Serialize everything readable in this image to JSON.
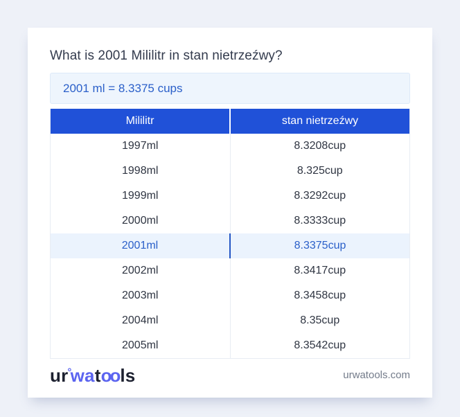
{
  "title": "What is 2001 Mililitr in stan nietrzeźwy?",
  "result": "2001 ml = 8.3375 cups",
  "table": {
    "columns": [
      "Mililitr",
      "stan nietrzeźwy"
    ],
    "rows": [
      {
        "ml": "1997ml",
        "cup": "8.3208cup",
        "highlighted": false
      },
      {
        "ml": "1998ml",
        "cup": "8.325cup",
        "highlighted": false
      },
      {
        "ml": "1999ml",
        "cup": "8.3292cup",
        "highlighted": false
      },
      {
        "ml": "2000ml",
        "cup": "8.3333cup",
        "highlighted": false
      },
      {
        "ml": "2001ml",
        "cup": "8.3375cup",
        "highlighted": true
      },
      {
        "ml": "2002ml",
        "cup": "8.3417cup",
        "highlighted": false
      },
      {
        "ml": "2003ml",
        "cup": "8.3458cup",
        "highlighted": false
      },
      {
        "ml": "2004ml",
        "cup": "8.35cup",
        "highlighted": false
      },
      {
        "ml": "2005ml",
        "cup": "8.3542cup",
        "highlighted": false
      }
    ]
  },
  "footer": {
    "logo": {
      "part1": "ur",
      "ring": "°",
      "part2": "wa",
      "part3": "t",
      "part4": "oo",
      "part5": "ls"
    },
    "site": "urwatools.com"
  },
  "colors": {
    "page_bg": "#eef1f8",
    "header_bg": "#2051d8",
    "accent_blue": "#2a5fc9",
    "highlight_bg": "#ebf3fd",
    "result_bg": "#eef5fd",
    "logo_blue": "#5b64f0"
  }
}
